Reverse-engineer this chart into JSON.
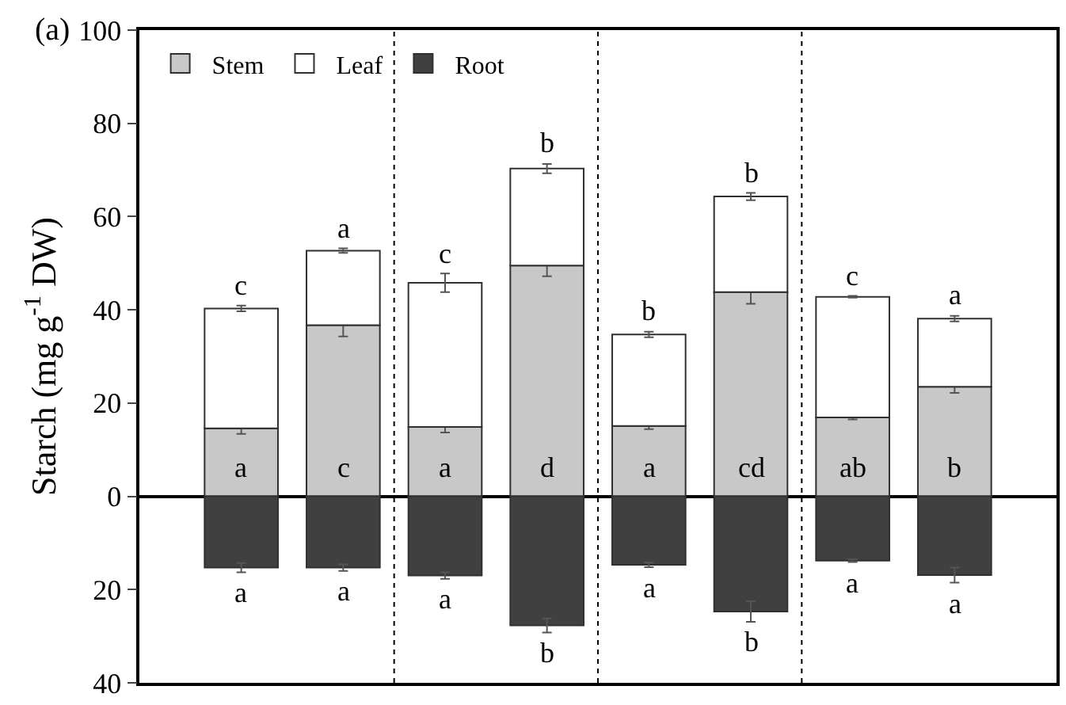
{
  "chart_data": {
    "type": "bar",
    "title": "(a)",
    "ylabel": "Starch (mg g$^{-1}$ DW)",
    "stacked": true,
    "categories": [
      null,
      null,
      null,
      null,
      null,
      null,
      null,
      null
    ],
    "series": [
      {
        "name": "Stem",
        "color": "#c8c8c8",
        "values": [
          14.6,
          36.7,
          14.9,
          49.5,
          15.1,
          43.8,
          16.9,
          23.5
        ],
        "errors": [
          1.2,
          2.4,
          1.2,
          2.3,
          0.7,
          2.5,
          0.4,
          1.3
        ],
        "value_labels": [
          "a",
          "c",
          "a",
          "d",
          "a",
          "cd",
          "ab",
          "b"
        ]
      },
      {
        "name": "Leaf",
        "color": "#ffffff",
        "values": [
          25.7,
          16.0,
          30.9,
          20.8,
          19.6,
          20.5,
          25.9,
          14.6
        ],
        "errors": [
          0.6,
          0.5,
          2.0,
          1.0,
          0.6,
          0.8,
          0.2,
          0.6
        ],
        "value_labels": [
          "c",
          "a",
          "c",
          "b",
          "b",
          "b",
          "c",
          "a"
        ]
      },
      {
        "name": "Root",
        "color": "#404040",
        "values": [
          -15.3,
          -15.3,
          -17.0,
          -27.7,
          -14.7,
          -24.7,
          -13.8,
          -16.9
        ],
        "errors": [
          1.0,
          0.7,
          0.7,
          1.5,
          0.5,
          2.2,
          0.3,
          1.6
        ],
        "value_labels": [
          "a",
          "a",
          "a",
          "b",
          "a",
          "b",
          "a",
          "a"
        ]
      }
    ],
    "ylim": [
      -40,
      100
    ],
    "yticks": [
      {
        "value": -40,
        "label": "40"
      },
      {
        "value": -20,
        "label": "20"
      },
      0,
      20,
      40,
      60,
      80,
      100
    ],
    "legend": "top left"
  }
}
